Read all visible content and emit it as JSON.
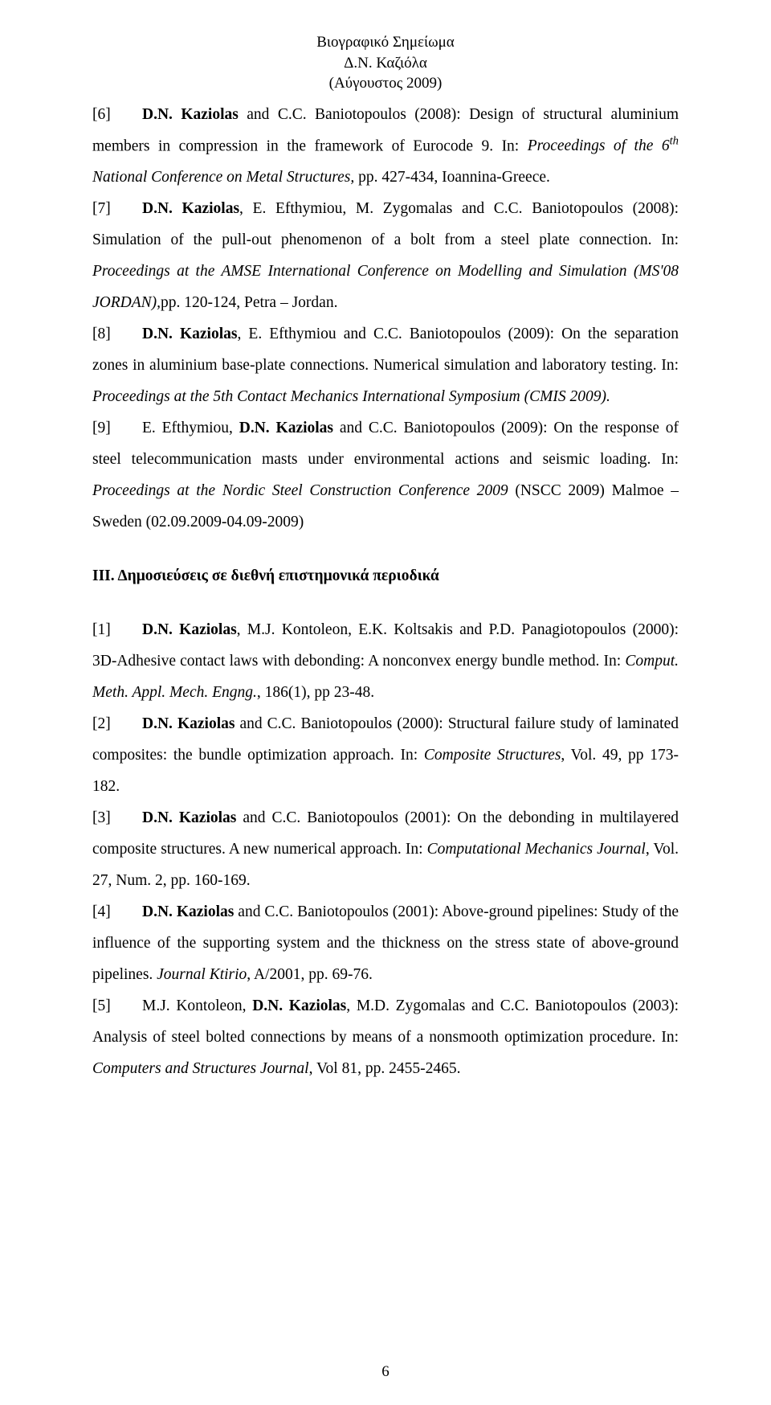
{
  "header": {
    "line1": "Βιογραφικό Σημείωμα",
    "line2": "Δ.Ν. Καζιόλα",
    "line3": "(Αύγουστος 2009)"
  },
  "entries_a": [
    {
      "num": "[6]",
      "authors_prefix": "",
      "bold_authors": "D.N. Kaziolas",
      "mid": " and C.C. Baniotopoulos (2008): Design of structural aluminium members in compression in the framework of Eurocode 9. In: ",
      "italic_part": "Proceedings of the 6",
      "sup": "th",
      "italic_cont": " National Conference on Metal Structures,",
      "tail": " pp. 427-434, Ioannina-Greece."
    },
    {
      "num": "[7]",
      "authors_prefix": "",
      "bold_authors": "D.N. Kaziolas",
      "mid": ", E. Efthymiou, M. Zygomalas and C.C. Baniotopoulos (2008): Simulation of the pull-out phenomenon of a bolt from a steel plate connection. In: ",
      "italic_part": "Proceedings at the AMSE International Conference on Modelling and Simulation (MS'08 JORDAN),",
      "sup": "",
      "italic_cont": "",
      "tail": "pp. 120-124, Petra – Jordan."
    },
    {
      "num": "[8]",
      "authors_prefix": "",
      "bold_authors": "D.N. Kaziolas",
      "mid": ", E. Efthymiou and C.C. Baniotopoulos (2009): On the separation zones in aluminium base-plate connections. Numerical simulation and laboratory testing. In: ",
      "italic_part": "Proceedings at the 5th Contact Mechanics International Symposium (CMIS 2009).",
      "sup": "",
      "italic_cont": "",
      "tail": ""
    },
    {
      "num": "[9]",
      "authors_prefix": "E. Efthymiou, ",
      "bold_authors": "D.N. Kaziolas",
      "mid": " and C.C. Baniotopoulos (2009): On the response of steel telecommunication masts under environmental actions and seismic loading. In: ",
      "italic_part": "Proceedings at the Nordic Steel Construction Conference 2009",
      "sup": "",
      "italic_cont": "",
      "tail": " (NSCC 2009) Malmoe – Sweden (02.09.2009-04.09-2009)"
    }
  ],
  "section3_title": "ΙΙΙ. Δημοσιεύσεις σε διεθνή επιστημονικά περιοδικά",
  "entries_b": [
    {
      "num": "[1]",
      "authors_prefix": "",
      "bold_authors": "D.N. Kaziolas",
      "mid": ", M.J. Kontoleon, E.K. Koltsakis and P.D. Panagiotopoulos (2000): 3D-Adhesive contact laws with debonding: A nonconvex energy bundle method. In: ",
      "italic_part": "Comput. Meth. Appl. Mech. Engng.",
      "tail": ", 186(1), pp 23-48."
    },
    {
      "num": "[2]",
      "authors_prefix": "",
      "bold_authors": "D.N. Kaziolas",
      "mid": " and C.C. Baniotopoulos  (2000): Structural failure study of laminated composites: the bundle optimization approach. In: ",
      "italic_part": "Composite Structures",
      "tail": ", Vol. 49, pp 173-182."
    },
    {
      "num": "[3]",
      "authors_prefix": "",
      "bold_authors": "D.N. Kaziolas",
      "mid": " and C.C. Baniotopoulos (2001): On the debonding in multilayered composite structures. A new numerical approach. In: ",
      "italic_part": "Computational Mechanics Journal",
      "tail": ", Vol. 27, Num. 2, pp. 160-169."
    },
    {
      "num": "[4]",
      "authors_prefix": "",
      "bold_authors": "D.N. Kaziolas",
      "mid": " and C.C. Baniotopoulos (2001): Above-ground pipelines: Study of the influence of the supporting system and the thickness on the stress state of above-ground pipelines. ",
      "italic_part": "Journal Ktirio",
      "tail": ", A/2001, pp. 69-76."
    },
    {
      "num": "[5]",
      "authors_prefix": "M.J. Kontoleon, ",
      "bold_authors": "D.N. Kaziolas",
      "mid": ", M.D. Zygomalas and C.C. Baniotopoulos (2003): Analysis of steel bolted connections by means of a nonsmooth optimization procedure. In: ",
      "italic_part": "Computers and Structures Journal",
      "tail": ", Vol 81, pp. 2455-2465."
    }
  ],
  "page_number": "6"
}
